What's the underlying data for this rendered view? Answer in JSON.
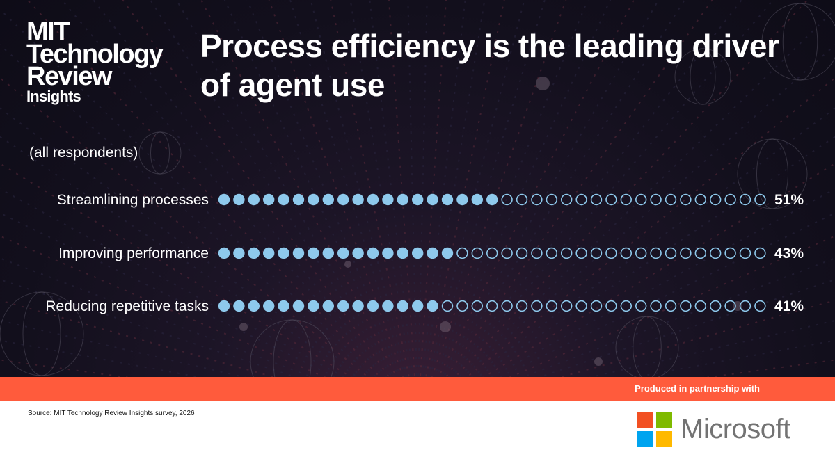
{
  "brand": {
    "logo_line1": "MIT",
    "logo_line2": "Technology",
    "logo_line3": "Review",
    "logo_line4": "Insights"
  },
  "title": "Process efficiency is the leading driver of agent use",
  "subtitle": "(all respondents)",
  "chart_data": {
    "type": "dot-bar",
    "total_dots": 37,
    "unit": "%",
    "categories": [
      "Streamlining processes",
      "Improving performance",
      "Reducing repetitive tasks"
    ],
    "values": [
      51,
      43,
      41
    ],
    "value_labels": [
      "51%",
      "43%",
      "41%"
    ],
    "filled_dots": [
      19,
      16,
      15
    ],
    "colors": {
      "filled": "#8ec9ec",
      "empty_stroke": "#8ec9ec"
    }
  },
  "footer": {
    "partner_text": "Produced in partnership with",
    "source": "Source: MIT Technology Review Insights survey, 2026",
    "partner_name": "Microsoft",
    "band_color": "#ff5b3c",
    "ms_colors": [
      "#f25022",
      "#7fba00",
      "#00a4ef",
      "#ffb900"
    ]
  }
}
